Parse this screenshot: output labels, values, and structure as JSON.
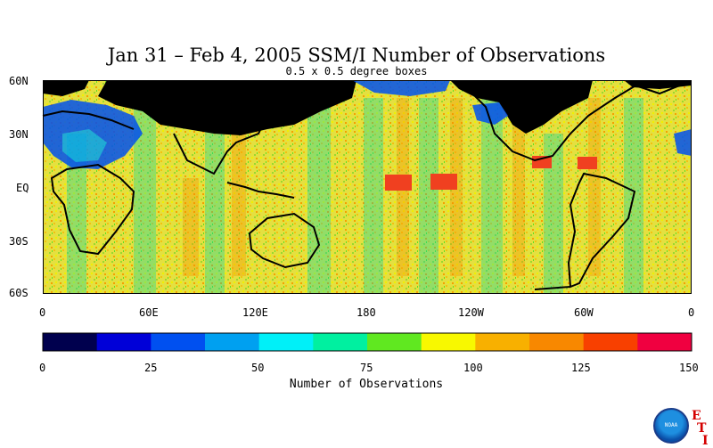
{
  "header": {
    "title": "Jan 31 – Feb 4, 2005 SSM/I Number of Observations",
    "subtitle": "0.5 x 0.5 degree boxes"
  },
  "map": {
    "lat_labels": [
      "60N",
      "30N",
      "EQ",
      "30S",
      "60S"
    ],
    "lon_labels": [
      "0",
      "60E",
      "120E",
      "180",
      "120W",
      "60W",
      "0"
    ],
    "ocean_color": "#e8d83a",
    "land_mask_color": "#000000"
  },
  "colorbar": {
    "title": "Number of Observations",
    "tick_labels": [
      "0",
      "25",
      "50",
      "75",
      "100",
      "125",
      "150"
    ],
    "colors": [
      "#00004e",
      "#0000d8",
      "#0050f0",
      "#00a0f0",
      "#00f0f8",
      "#00f0a0",
      "#60e820",
      "#f8f800",
      "#f8b000",
      "#f88800",
      "#f84000",
      "#f00040"
    ]
  },
  "logos": {
    "noaa_text": "NOAA",
    "eti_letters": [
      "E",
      "T",
      "I"
    ]
  }
}
